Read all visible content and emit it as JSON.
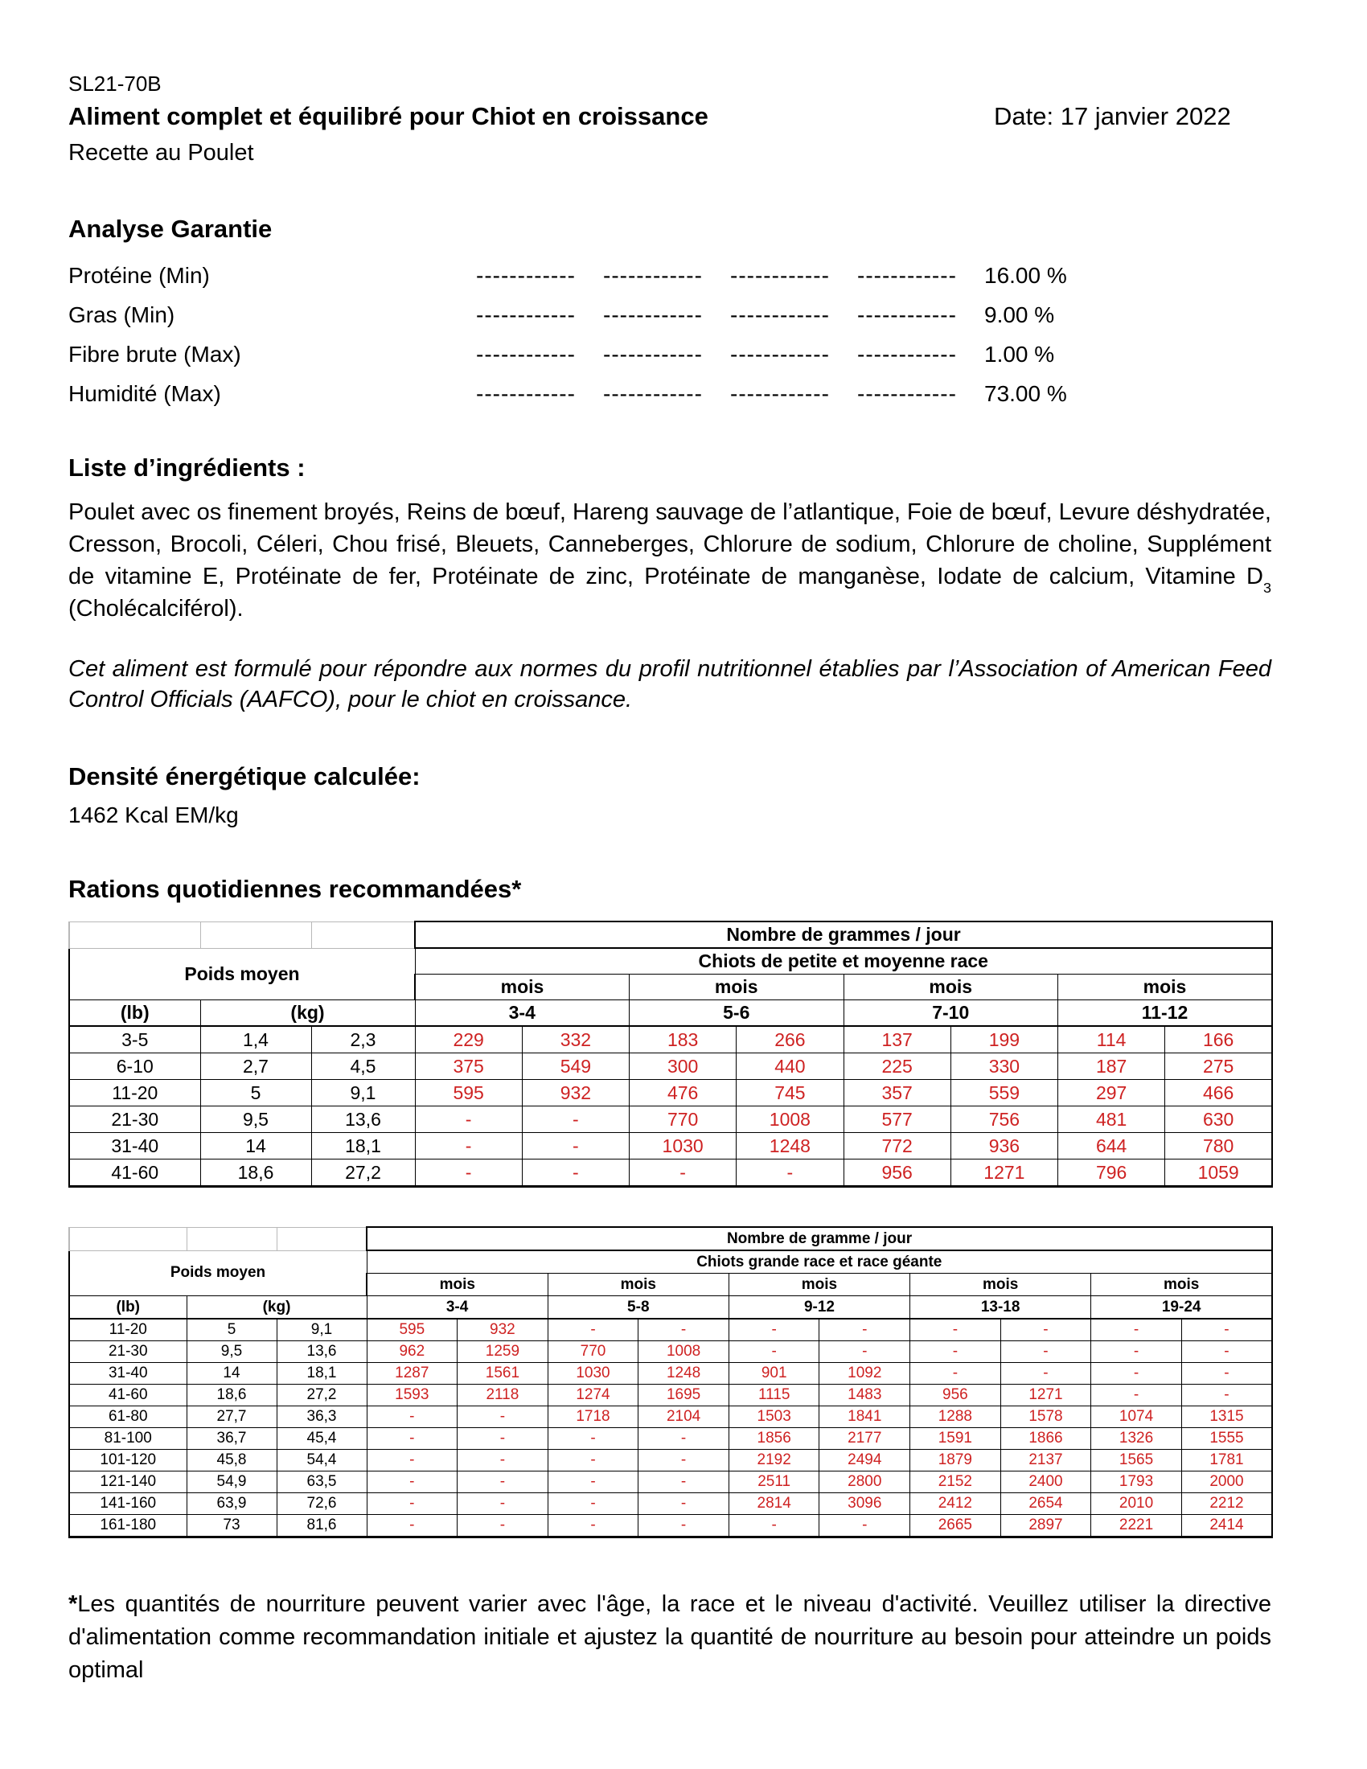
{
  "colors": {
    "data_red": "#ce2222"
  },
  "header": {
    "code": "SL21-70B",
    "title": "Aliment complet et équilibré pour Chiot en croissance",
    "date": "Date: 17 janvier 2022",
    "subtitle": "Recette au Poulet"
  },
  "guaranteed_analysis": {
    "heading": "Analyse Garantie",
    "dash": "------------",
    "rows": [
      {
        "label": "Protéine (Min)",
        "value": "16.00 %"
      },
      {
        "label": "Gras (Min)",
        "value": "9.00 %"
      },
      {
        "label": "Fibre brute (Max)",
        "value": "1.00 %"
      },
      {
        "label": "Humidité (Max)",
        "value": "73.00 %"
      }
    ]
  },
  "ingredients": {
    "heading": "Liste d’ingrédients :",
    "text_main": "Poulet avec os finement broyés, Reins de bœuf, Hareng sauvage de l’atlantique, Foie de bœuf, Levure déshydratée, Cresson, Brocoli, Céleri, Chou frisé, Bleuets, Canneberges, Chlorure de sodium, Chlorure de choline, Supplément de vitamine E, Protéinate de fer, Protéinate de zinc, Protéinate de manganèse, Iodate de calcium, Vitamine D",
    "vitamin_subscript": "3",
    "text_end": " (Cholécalciférol)."
  },
  "aafco_statement": "Cet aliment est formulé pour répondre aux normes du profil nutritionnel établies par l’Association of American Feed Control Officials (AAFCO), pour le chiot en croissance.",
  "energy": {
    "heading": "Densité énergétique calculée:",
    "value": "1462 Kcal EM/kg"
  },
  "rations_heading": "Rations quotidiennes recommandées*",
  "table1": {
    "name": "small-medium-breed-ration-table",
    "top_header": "Nombre de grammes / jour",
    "group_header": "Chiots de petite et moyenne race",
    "weight_header": "Poids moyen",
    "mois_label": "mois",
    "lb_label": "(lb)",
    "kg_label": "(kg)",
    "month_ranges": [
      "3-4",
      "5-6",
      "7-10",
      "11-12"
    ],
    "rows": [
      {
        "lb": "3-5",
        "kg1": "1,4",
        "kg2": "2,3",
        "values": [
          "229",
          "332",
          "183",
          "266",
          "137",
          "199",
          "114",
          "166"
        ]
      },
      {
        "lb": "6-10",
        "kg1": "2,7",
        "kg2": "4,5",
        "values": [
          "375",
          "549",
          "300",
          "440",
          "225",
          "330",
          "187",
          "275"
        ]
      },
      {
        "lb": "11-20",
        "kg1": "5",
        "kg2": "9,1",
        "values": [
          "595",
          "932",
          "476",
          "745",
          "357",
          "559",
          "297",
          "466"
        ]
      },
      {
        "lb": "21-30",
        "kg1": "9,5",
        "kg2": "13,6",
        "values": [
          "-",
          "-",
          "770",
          "1008",
          "577",
          "756",
          "481",
          "630"
        ]
      },
      {
        "lb": "31-40",
        "kg1": "14",
        "kg2": "18,1",
        "values": [
          "-",
          "-",
          "1030",
          "1248",
          "772",
          "936",
          "644",
          "780"
        ]
      },
      {
        "lb": "41-60",
        "kg1": "18,6",
        "kg2": "27,2",
        "values": [
          "-",
          "-",
          "-",
          "-",
          "956",
          "1271",
          "796",
          "1059"
        ]
      }
    ]
  },
  "table2": {
    "name": "large-giant-breed-ration-table",
    "top_header": "Nombre de gramme / jour",
    "group_header": "Chiots grande race et race géante",
    "weight_header": "Poids moyen",
    "mois_label": "mois",
    "lb_label": "(lb)",
    "kg_label": "(kg)",
    "month_ranges": [
      "3-4",
      "5-8",
      "9-12",
      "13-18",
      "19-24"
    ],
    "rows": [
      {
        "lb": "11-20",
        "kg1": "5",
        "kg2": "9,1",
        "values": [
          "595",
          "932",
          "-",
          "-",
          "-",
          "-",
          "-",
          "-",
          "-",
          "-"
        ]
      },
      {
        "lb": "21-30",
        "kg1": "9,5",
        "kg2": "13,6",
        "values": [
          "962",
          "1259",
          "770",
          "1008",
          "-",
          "-",
          "-",
          "-",
          "-",
          "-"
        ]
      },
      {
        "lb": "31-40",
        "kg1": "14",
        "kg2": "18,1",
        "values": [
          "1287",
          "1561",
          "1030",
          "1248",
          "901",
          "1092",
          "-",
          "-",
          "-",
          "-"
        ]
      },
      {
        "lb": "41-60",
        "kg1": "18,6",
        "kg2": "27,2",
        "values": [
          "1593",
          "2118",
          "1274",
          "1695",
          "1115",
          "1483",
          "956",
          "1271",
          "-",
          "-"
        ]
      },
      {
        "lb": "61-80",
        "kg1": "27,7",
        "kg2": "36,3",
        "values": [
          "-",
          "-",
          "1718",
          "2104",
          "1503",
          "1841",
          "1288",
          "1578",
          "1074",
          "1315"
        ]
      },
      {
        "lb": "81-100",
        "kg1": "36,7",
        "kg2": "45,4",
        "values": [
          "-",
          "-",
          "-",
          "-",
          "1856",
          "2177",
          "1591",
          "1866",
          "1326",
          "1555"
        ]
      },
      {
        "lb": "101-120",
        "kg1": "45,8",
        "kg2": "54,4",
        "values": [
          "-",
          "-",
          "-",
          "-",
          "2192",
          "2494",
          "1879",
          "2137",
          "1565",
          "1781"
        ]
      },
      {
        "lb": "121-140",
        "kg1": "54,9",
        "kg2": "63,5",
        "values": [
          "-",
          "-",
          "-",
          "-",
          "2511",
          "2800",
          "2152",
          "2400",
          "1793",
          "2000"
        ]
      },
      {
        "lb": "141-160",
        "kg1": "63,9",
        "kg2": "72,6",
        "values": [
          "-",
          "-",
          "-",
          "-",
          "2814",
          "3096",
          "2412",
          "2654",
          "2010",
          "2212"
        ]
      },
      {
        "lb": "161-180",
        "kg1": "73",
        "kg2": "81,6",
        "values": [
          "-",
          "-",
          "-",
          "-",
          "-",
          "-",
          "2665",
          "2897",
          "2221",
          "2414"
        ]
      }
    ]
  },
  "footnote": {
    "asterisk": "*",
    "text": "Les quantités de nourriture peuvent varier avec l'âge, la race et le niveau d'activité. Veuillez utiliser la directive d'alimentation comme recommandation initiale et ajustez la quantité de nourriture au besoin pour atteindre un poids optimal"
  }
}
